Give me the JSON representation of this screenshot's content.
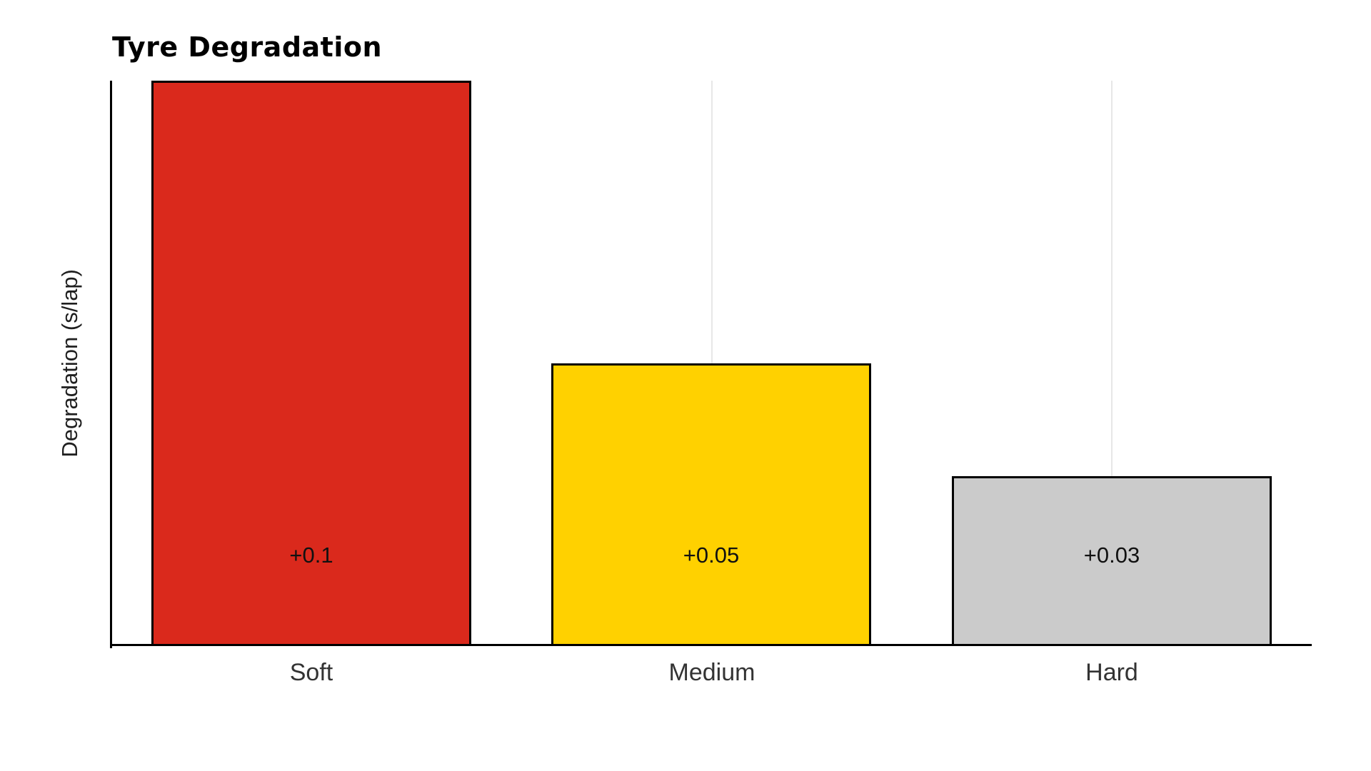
{
  "chart_data": {
    "type": "bar",
    "title": "Tyre Degradation",
    "xlabel": "",
    "ylabel": "Degradation (s/lap)",
    "categories": [
      "Soft",
      "Medium",
      "Hard"
    ],
    "values": [
      0.1,
      0.05,
      0.03
    ],
    "value_labels": [
      "+0.1",
      "+0.05",
      "+0.03"
    ],
    "bar_colors": [
      "#da291c",
      "#ffd100",
      "#cbcbcb"
    ],
    "bar_edge_color": "#000000",
    "axis_color": "#000000",
    "gridline_color": "#e7e7e7",
    "text_color": "#333333",
    "ylim": [
      0,
      0.1
    ],
    "grid": "vertical category gridlines",
    "legend_position": "none",
    "y_tick_labels": []
  }
}
